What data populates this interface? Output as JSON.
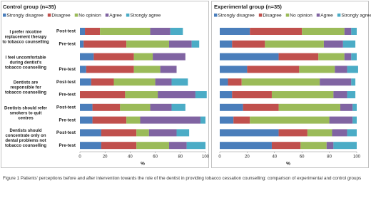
{
  "chart_data": [
    {
      "type": "bar",
      "orientation": "horizontal",
      "stacked": true,
      "title": "Control group (n=35)",
      "statements": [
        "I prefer nicotine replacement therapy to tobacco counselling",
        "I feel uncomfortable during dentist's tobacco counselling",
        "Dentists are responsible for tobacco counselling",
        "Dentists should refer smokers to quit centres",
        "Dentists should concentrate only on dental problems not tobacco counselling"
      ],
      "categories": [
        "Post-test",
        "Pre-test",
        null,
        "Pre-test",
        "Post-test",
        "Pre-test",
        "Post-test",
        "Pre-test",
        "Post-test",
        "Pre-test"
      ],
      "series": [
        {
          "name": "Strongly disagree",
          "color": "#4a7ebb",
          "values": [
            4,
            3,
            11,
            5,
            9,
            0,
            10,
            10,
            17,
            17
          ]
        },
        {
          "name": "Disagree",
          "color": "#c0504d",
          "values": [
            12,
            34,
            32,
            38,
            18,
            36,
            22,
            27,
            28,
            28
          ]
        },
        {
          "name": "No opinion",
          "color": "#9bbb59",
          "values": [
            40,
            34,
            15,
            21,
            33,
            26,
            24,
            11,
            10,
            26
          ]
        },
        {
          "name": "Agree",
          "color": "#8064a2",
          "values": [
            16,
            18,
            26,
            13,
            13,
            30,
            17,
            48,
            22,
            14
          ]
        },
        {
          "name": "Strongly agree",
          "color": "#4bacc6",
          "values": [
            10,
            6,
            0,
            0,
            13,
            9,
            11,
            4,
            10,
            15
          ]
        }
      ],
      "xlim": [
        0,
        100
      ],
      "xticks": [
        0,
        20,
        40,
        60,
        80,
        100
      ],
      "xlabel": "%"
    },
    {
      "type": "bar",
      "orientation": "horizontal",
      "stacked": true,
      "title": "Experimental group (n=35)",
      "categories": [
        null,
        null,
        null,
        null,
        null,
        null,
        null,
        null,
        null,
        null
      ],
      "series": [
        {
          "name": "Strongly disagree",
          "color": "#4a7ebb",
          "values": [
            22,
            9,
            43,
            20,
            6,
            9,
            17,
            10,
            43,
            38
          ]
        },
        {
          "name": "Disagree",
          "color": "#c0504d",
          "values": [
            38,
            24,
            29,
            38,
            10,
            29,
            26,
            12,
            21,
            21
          ]
        },
        {
          "name": "No opinion",
          "color": "#9bbb59",
          "values": [
            31,
            43,
            19,
            26,
            57,
            45,
            45,
            58,
            18,
            19
          ]
        },
        {
          "name": "Agree",
          "color": "#8064a2",
          "values": [
            5,
            14,
            5,
            9,
            23,
            10,
            9,
            17,
            11,
            5
          ]
        },
        {
          "name": "Strongly agree",
          "color": "#4bacc6",
          "values": [
            4,
            9,
            4,
            8,
            3,
            6,
            3,
            3,
            7,
            17
          ]
        }
      ],
      "xlim": [
        0,
        100
      ],
      "xticks": [
        0,
        20,
        40,
        60,
        80,
        100
      ],
      "xlabel": "%"
    }
  ],
  "caption": "Figure 1 Patients' perceptions before and after intervention towards the role of the dentist in providing tobacco cessation counselling: comparison of experimental and control groups"
}
